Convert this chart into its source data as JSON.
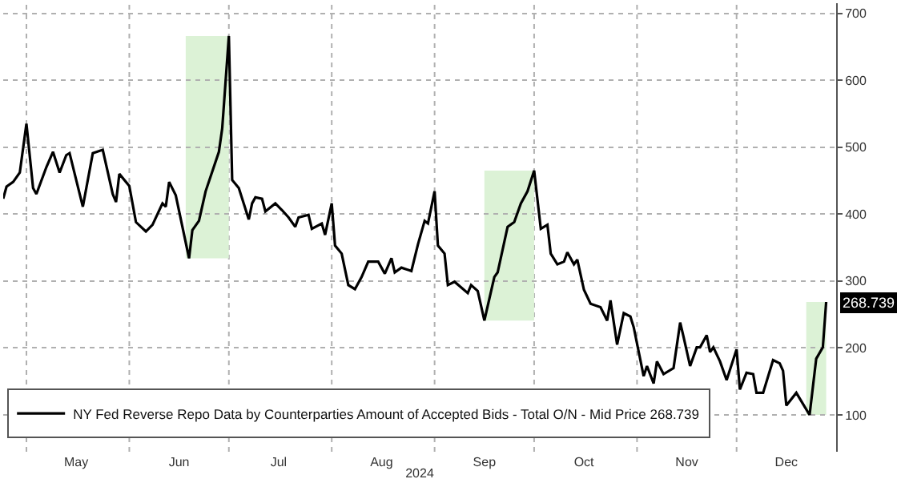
{
  "chart_data": {
    "type": "line",
    "xlabel": "2024",
    "x": [
      "2024-04-24",
      "2024-04-25",
      "2024-04-27",
      "2024-04-29",
      "2024-05-01",
      "2024-05-03",
      "2024-05-04",
      "2024-05-07",
      "2024-05-09",
      "2024-05-11",
      "2024-05-13",
      "2024-05-14",
      "2024-05-18",
      "2024-05-21",
      "2024-05-24",
      "2024-05-27",
      "2024-05-28",
      "2024-05-29",
      "2024-06-01",
      "2024-06-03",
      "2024-06-06",
      "2024-06-08",
      "2024-06-11",
      "2024-06-12",
      "2024-06-13",
      "2024-06-15",
      "2024-06-19",
      "2024-06-20",
      "2024-06-22",
      "2024-06-24",
      "2024-06-28",
      "2024-06-29",
      "2024-07-01",
      "2024-07-02",
      "2024-07-04",
      "2024-07-07",
      "2024-07-08",
      "2024-07-09",
      "2024-07-11",
      "2024-07-12",
      "2024-07-15",
      "2024-07-17",
      "2024-07-19",
      "2024-07-21",
      "2024-07-22",
      "2024-07-25",
      "2024-07-26",
      "2024-07-29",
      "2024-07-30",
      "2024-08-01",
      "2024-08-02",
      "2024-08-04",
      "2024-08-06",
      "2024-08-08",
      "2024-08-10",
      "2024-08-12",
      "2024-08-15",
      "2024-08-17",
      "2024-08-19",
      "2024-08-20",
      "2024-08-22",
      "2024-08-25",
      "2024-08-27",
      "2024-08-29",
      "2024-08-30",
      "2024-09-01",
      "2024-09-02",
      "2024-09-04",
      "2024-09-05",
      "2024-09-07",
      "2024-09-11",
      "2024-09-12",
      "2024-09-14",
      "2024-09-16",
      "2024-09-19",
      "2024-09-20",
      "2024-09-23",
      "2024-09-25",
      "2024-09-27",
      "2024-09-29",
      "2024-10-01",
      "2024-10-03",
      "2024-10-05",
      "2024-10-06",
      "2024-10-08",
      "2024-10-10",
      "2024-10-11",
      "2024-10-13",
      "2024-10-14",
      "2024-10-16",
      "2024-10-18",
      "2024-10-21",
      "2024-10-23",
      "2024-10-24",
      "2024-10-26",
      "2024-10-28",
      "2024-10-30",
      "2024-10-31",
      "2024-11-03",
      "2024-11-04",
      "2024-11-06",
      "2024-11-07",
      "2024-11-09",
      "2024-11-12",
      "2024-11-14",
      "2024-11-15",
      "2024-11-17",
      "2024-11-19",
      "2024-11-20",
      "2024-11-22",
      "2024-11-23",
      "2024-11-24",
      "2024-11-26",
      "2024-11-28",
      "2024-12-01",
      "2024-12-02",
      "2024-12-04",
      "2024-12-06",
      "2024-12-07",
      "2024-12-09",
      "2024-12-12",
      "2024-12-14",
      "2024-12-15",
      "2024-12-16",
      "2024-12-19",
      "2024-12-23",
      "2024-12-25",
      "2024-12-27",
      "2024-12-28"
    ],
    "series": [
      {
        "name": "NY Fed Reverse Repo Data by Counterparties Amount of Accepted Bids - Total O/N - Mid Price 268.739",
        "color": "#000000",
        "values": [
          423,
          441,
          448,
          462,
          535,
          439,
          430,
          470,
          493,
          462,
          488,
          491,
          411,
          491,
          496,
          430,
          418,
          460,
          442,
          388,
          374,
          384,
          416,
          411,
          448,
          428,
          334,
          376,
          390,
          434,
          493,
          528,
          666,
          451,
          439,
          392,
          416,
          425,
          423,
          404,
          416,
          406,
          395,
          381,
          395,
          399,
          378,
          386,
          369,
          416,
          353,
          341,
          294,
          288,
          306,
          329,
          329,
          311,
          334,
          313,
          320,
          315,
          355,
          390,
          386,
          434,
          353,
          341,
          294,
          299,
          282,
          294,
          285,
          241,
          306,
          313,
          381,
          388,
          416,
          434,
          465,
          378,
          384,
          341,
          325,
          329,
          343,
          325,
          332,
          287,
          266,
          261,
          241,
          271,
          205,
          252,
          247,
          231,
          158,
          173,
          147,
          180,
          161,
          170,
          238,
          217,
          173,
          201,
          201,
          219,
          194,
          201,
          180,
          152,
          198,
          138,
          163,
          161,
          133,
          133,
          182,
          177,
          166,
          114,
          133,
          100,
          184,
          201,
          268.739
        ]
      }
    ],
    "xlim": [
      "2024-04-24",
      "2024-12-31"
    ],
    "xticks": [
      {
        "value": "2024-05-01",
        "label": null
      },
      {
        "value": "2024-05-16",
        "label": "May"
      },
      {
        "value": "2024-06-01",
        "label": null
      },
      {
        "value": "2024-06-16",
        "label": "Jun"
      },
      {
        "value": "2024-07-01",
        "label": null
      },
      {
        "value": "2024-07-16",
        "label": "Jul"
      },
      {
        "value": "2024-08-01",
        "label": null
      },
      {
        "value": "2024-08-16",
        "label": "Aug"
      },
      {
        "value": "2024-09-01",
        "label": null
      },
      {
        "value": "2024-09-16",
        "label": "Sep"
      },
      {
        "value": "2024-10-01",
        "label": null
      },
      {
        "value": "2024-10-16",
        "label": "Oct"
      },
      {
        "value": "2024-11-01",
        "label": null
      },
      {
        "value": "2024-11-16",
        "label": "Nov"
      },
      {
        "value": "2024-12-01",
        "label": null
      },
      {
        "value": "2024-12-16",
        "label": "Dec"
      }
    ],
    "ylim": [
      45,
      715
    ],
    "yticks": [
      100,
      200,
      300,
      400,
      500,
      600,
      700
    ],
    "grid": true,
    "legend": "bottom left",
    "bands": [
      {
        "axis": "x",
        "from": "2024-06-18",
        "to": "2024-07-01",
        "color": "#dcf2d6"
      },
      {
        "axis": "x",
        "from": "2024-09-16",
        "to": "2024-10-01",
        "color": "#dcf2d6"
      },
      {
        "axis": "x",
        "from": "2024-12-22",
        "to": "2024-12-28",
        "color": "#dcf2d6"
      }
    ],
    "annotations": [
      {
        "text": "268.739",
        "y": 268.739
      }
    ]
  }
}
